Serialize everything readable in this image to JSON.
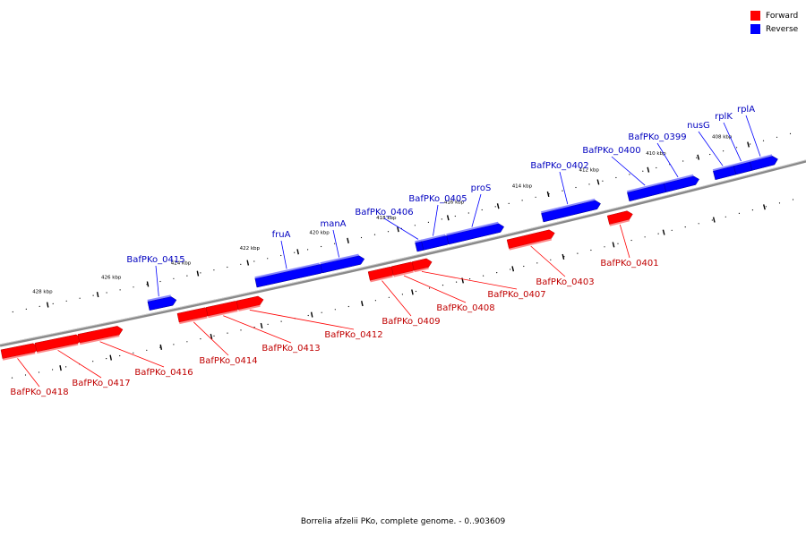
{
  "colors": {
    "forward": "#ff0000",
    "reverse": "#0000ff"
  },
  "legend": [
    {
      "label": "Forward",
      "strand": "forward"
    },
    {
      "label": "Reverse",
      "strand": "reverse"
    }
  ],
  "caption": "Borrelia afzelii PKo, complete genome. - 0..903609",
  "ticks": [
    "408 kbp",
    "410 kbp",
    "412 kbp",
    "414 kbp",
    "416 kbp",
    "418 kbp",
    "420 kbp",
    "422 kbp",
    "424 kbp",
    "426 kbp",
    "428 kbp"
  ],
  "genes": [
    {
      "label": "BafPKo_0418",
      "strand": "forward"
    },
    {
      "label": "BafPKo_0417",
      "strand": "forward"
    },
    {
      "label": "BafPKo_0416",
      "strand": "forward"
    },
    {
      "label": "BafPKo_0415",
      "strand": "reverse"
    },
    {
      "label": "BafPKo_0414",
      "strand": "forward"
    },
    {
      "label": "BafPKo_0413",
      "strand": "forward"
    },
    {
      "label": "BafPKo_0412",
      "strand": "forward"
    },
    {
      "label": "fruA",
      "strand": "reverse"
    },
    {
      "label": "manA",
      "strand": "reverse"
    },
    {
      "label": "BafPKo_0409",
      "strand": "forward"
    },
    {
      "label": "BafPKo_0408",
      "strand": "forward"
    },
    {
      "label": "BafPKo_0407",
      "strand": "forward"
    },
    {
      "label": "BafPKo_0406",
      "strand": "reverse"
    },
    {
      "label": "BafPKo_0405",
      "strand": "reverse"
    },
    {
      "label": "proS",
      "strand": "reverse"
    },
    {
      "label": "BafPKo_0403",
      "strand": "forward"
    },
    {
      "label": "BafPKo_0402",
      "strand": "reverse"
    },
    {
      "label": "BafPKo_0401",
      "strand": "forward"
    },
    {
      "label": "BafPKo_0400",
      "strand": "reverse"
    },
    {
      "label": "BafPKo_0399",
      "strand": "reverse"
    },
    {
      "label": "nusG",
      "strand": "reverse"
    },
    {
      "label": "rplK",
      "strand": "reverse"
    },
    {
      "label": "rplA",
      "strand": "reverse"
    }
  ]
}
